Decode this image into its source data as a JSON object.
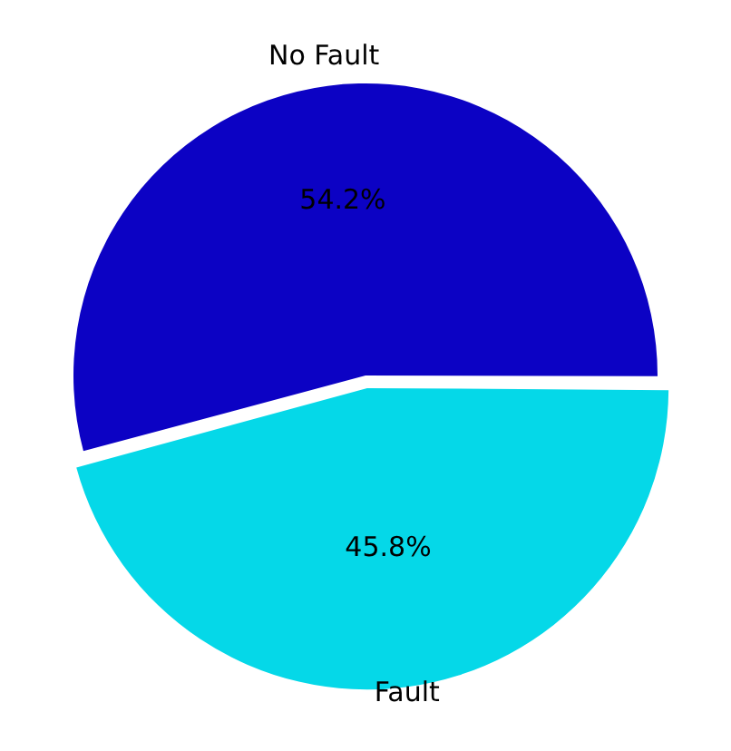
{
  "chart_data": {
    "type": "pie",
    "categories": [
      "No Fault",
      "Fault"
    ],
    "values": [
      54.2,
      45.8
    ],
    "colors": [
      "#0c02c4",
      "#05d8e8"
    ],
    "value_labels": [
      "54.2%",
      "45.8%"
    ],
    "legend": false
  }
}
